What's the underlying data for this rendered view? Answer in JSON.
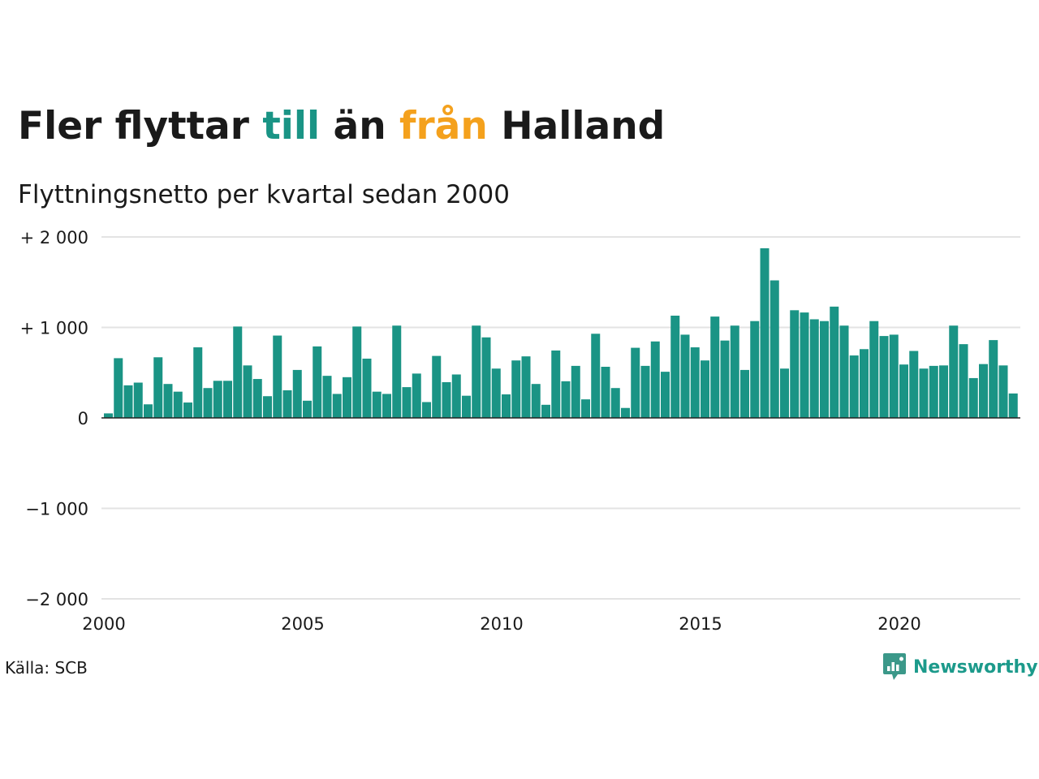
{
  "title": {
    "part1": "Fler flyttar ",
    "part2": "till",
    "part3": " än ",
    "part4": "från",
    "part5": " Halland"
  },
  "subtitle": "Flyttningsnetto per kvartal sedan 2000",
  "source": "Källa: SCB",
  "brand": {
    "name": "Newsworthy",
    "logo_icon": "chat-bar-chart-icon"
  },
  "colors": {
    "bar": "#1a9485",
    "till": "#1a9485",
    "fran": "#f4a11d",
    "grid": "#e3e3e3",
    "text": "#1a1a1a"
  },
  "chart_data": {
    "type": "bar",
    "x_start": "2000 Q1",
    "frequency": "quarterly",
    "values": [
      50,
      660,
      360,
      390,
      150,
      670,
      375,
      290,
      170,
      780,
      330,
      410,
      410,
      1010,
      580,
      430,
      240,
      910,
      305,
      530,
      190,
      790,
      465,
      265,
      450,
      1010,
      655,
      290,
      265,
      1020,
      340,
      490,
      175,
      685,
      395,
      480,
      245,
      1020,
      890,
      545,
      260,
      635,
      680,
      375,
      145,
      745,
      405,
      575,
      205,
      930,
      565,
      330,
      110,
      775,
      575,
      845,
      510,
      1130,
      920,
      780,
      635,
      1120,
      855,
      1020,
      530,
      1070,
      1875,
      1520,
      545,
      1190,
      1165,
      1090,
      1070,
      1230,
      1020,
      690,
      760,
      1070,
      905,
      920,
      590,
      740,
      545,
      575,
      580,
      1020,
      815,
      440,
      595,
      860,
      580,
      270
    ],
    "yticks": [
      2000,
      1000,
      0,
      -1000,
      -2000
    ],
    "ytick_labels": [
      "+ 2 000",
      "+ 1 000",
      "0",
      "−1 000",
      "−2 000"
    ],
    "xticks": [
      "2000",
      "2005",
      "2010",
      "2015",
      "2020"
    ],
    "ylim": [
      -2000,
      2000
    ],
    "xlim": [
      "2000",
      "2023 Q2"
    ],
    "grid": true,
    "legend": "none"
  }
}
